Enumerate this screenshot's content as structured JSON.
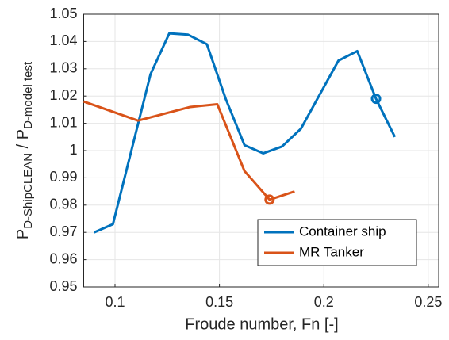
{
  "chart_data": {
    "type": "line",
    "xlabel": "Froude number, Fn [-]",
    "ylabel": [
      {
        "text": "P"
      },
      {
        "text": "D-ShipCLEAN",
        "sub": true
      },
      {
        "text": " / P"
      },
      {
        "text": "D-model test",
        "sub": true
      }
    ],
    "xlim": [
      0.085,
      0.255
    ],
    "xticks": [
      0.1,
      0.15,
      0.2,
      0.25
    ],
    "ylim": [
      0.95,
      1.05
    ],
    "yticks": [
      0.95,
      0.96,
      0.97,
      0.98,
      0.99,
      1,
      1.01,
      1.02,
      1.03,
      1.04,
      1.05
    ],
    "grid": true,
    "legend": "lower right",
    "series": [
      {
        "name": "Container ship",
        "color": "#0072bd",
        "marker_index": 14,
        "x": [
          0.09,
          0.099,
          0.117,
          0.126,
          0.135,
          0.144,
          0.153,
          0.162,
          0.171,
          0.18,
          0.189,
          0.207,
          0.216,
          0.225,
          0.225,
          0.234
        ],
        "values": [
          0.97,
          0.973,
          1.028,
          1.043,
          1.0425,
          1.039,
          1.019,
          1.002,
          0.999,
          1.0015,
          1.008,
          1.033,
          1.0365,
          1.019,
          1.019,
          1.005
        ]
      },
      {
        "name": "MR Tanker",
        "color": "#d95319",
        "marker_index": 5,
        "x": [
          0.085,
          0.111,
          0.136,
          0.149,
          0.162,
          0.174,
          0.186
        ],
        "values": [
          1.018,
          1.011,
          1.016,
          1.017,
          0.9925,
          0.982,
          0.985
        ]
      }
    ]
  }
}
